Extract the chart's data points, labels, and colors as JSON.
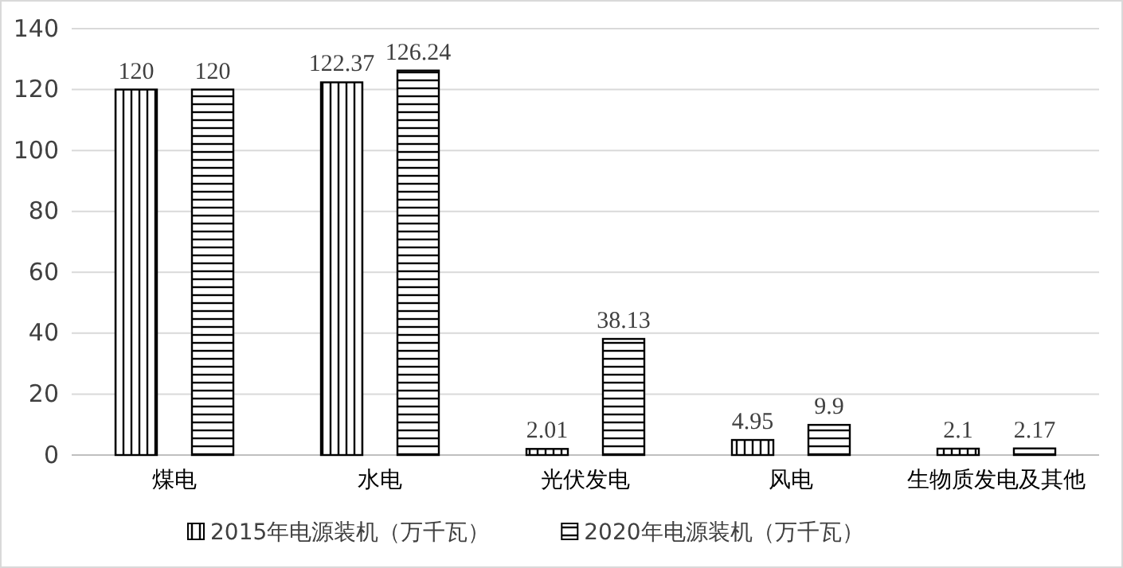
{
  "chart_data": {
    "type": "bar",
    "categories": [
      "煤电",
      "水电",
      "光伏发电",
      "风电",
      "生物质发电及其他"
    ],
    "series": [
      {
        "name": "2015年电源装机（万千瓦）",
        "color": "#000000",
        "values": [
          120,
          122.37,
          2.01,
          4.95,
          2.1
        ]
      },
      {
        "name": "2020年电源装机（万千瓦）",
        "color": "#000000",
        "values": [
          120,
          126.24,
          38.13,
          9.9,
          2.17
        ]
      }
    ],
    "ylim": [
      0,
      140
    ],
    "yticks": [
      0,
      20,
      40,
      60,
      80,
      100,
      120,
      140
    ],
    "grid": "y",
    "legend": "bottom",
    "data_labels": true
  }
}
